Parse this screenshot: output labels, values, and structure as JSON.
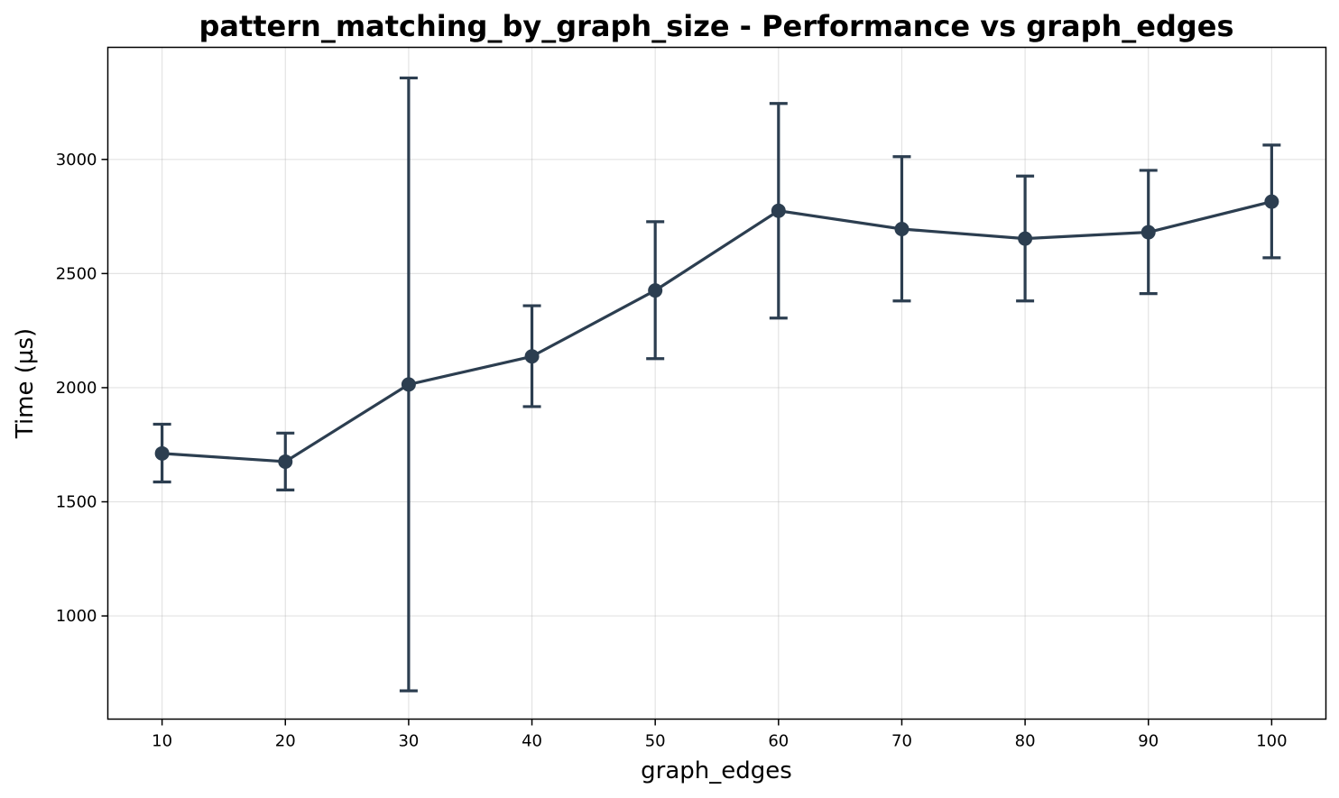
{
  "chart_data": {
    "type": "line",
    "title": "pattern_matching_by_graph_size - Performance vs graph_edges",
    "xlabel": "graph_edges",
    "ylabel": "Time (µs)",
    "x": [
      10,
      20,
      30,
      40,
      50,
      60,
      70,
      80,
      90,
      100
    ],
    "series": [
      {
        "values": [
          1712,
          1676,
          2014,
          2137,
          2426,
          2775,
          2695,
          2653,
          2681,
          2815
        ],
        "error_low": [
          1587,
          1552,
          672,
          1917,
          2127,
          2305,
          2380,
          2380,
          2412,
          2569
        ],
        "error_high": [
          1840,
          1801,
          3357,
          2359,
          2727,
          3245,
          3012,
          2927,
          2952,
          3063
        ],
        "color": "#2c3e50"
      }
    ],
    "x_ticks": [
      10,
      20,
      30,
      40,
      50,
      60,
      70,
      80,
      90,
      100
    ],
    "y_ticks": [
      1000,
      1500,
      2000,
      2500,
      3000
    ],
    "xlim": [
      5.6,
      104.4
    ],
    "ylim": [
      548,
      3491
    ],
    "grid": true
  }
}
